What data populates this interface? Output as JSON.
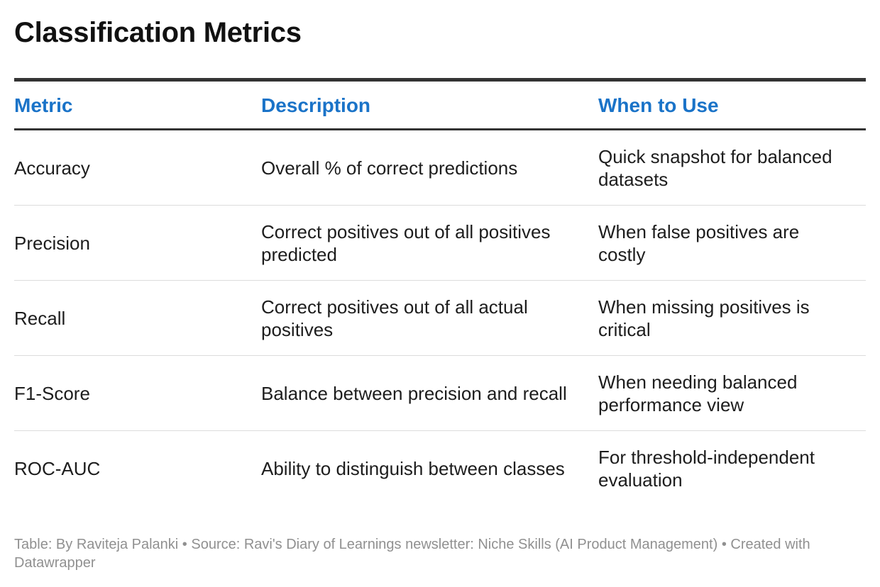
{
  "title": "Classification Metrics",
  "table": {
    "headers": [
      "Metric",
      "Description",
      "When to Use"
    ],
    "rows": [
      {
        "metric": "Accuracy",
        "description": "Overall % of correct predictions",
        "when": "Quick snapshot for balanced datasets"
      },
      {
        "metric": "Precision",
        "description": "Correct positives out of all positives predicted",
        "when": "When false positives are costly"
      },
      {
        "metric": "Recall",
        "description": "Correct positives out of all actual positives",
        "when": "When missing positives is critical"
      },
      {
        "metric": "F1-Score",
        "description": "Balance between precision and recall",
        "when": "When needing balanced performance view"
      },
      {
        "metric": "ROC-AUC",
        "description": "Ability to distinguish between classes",
        "when": "For threshold-independent evaluation"
      }
    ]
  },
  "footer": {
    "credit": "Table: By Raviteja Palanki ",
    "source": " • Source: Ravi's Diary of Learnings newsletter: Niche Skills (AI Product Management)",
    "created": " • Created with Datawrapper"
  },
  "colors": {
    "header_text": "#1a73c8",
    "rule": "#333333",
    "row_divider": "#dcdcdc",
    "notes_text": "#909090"
  }
}
